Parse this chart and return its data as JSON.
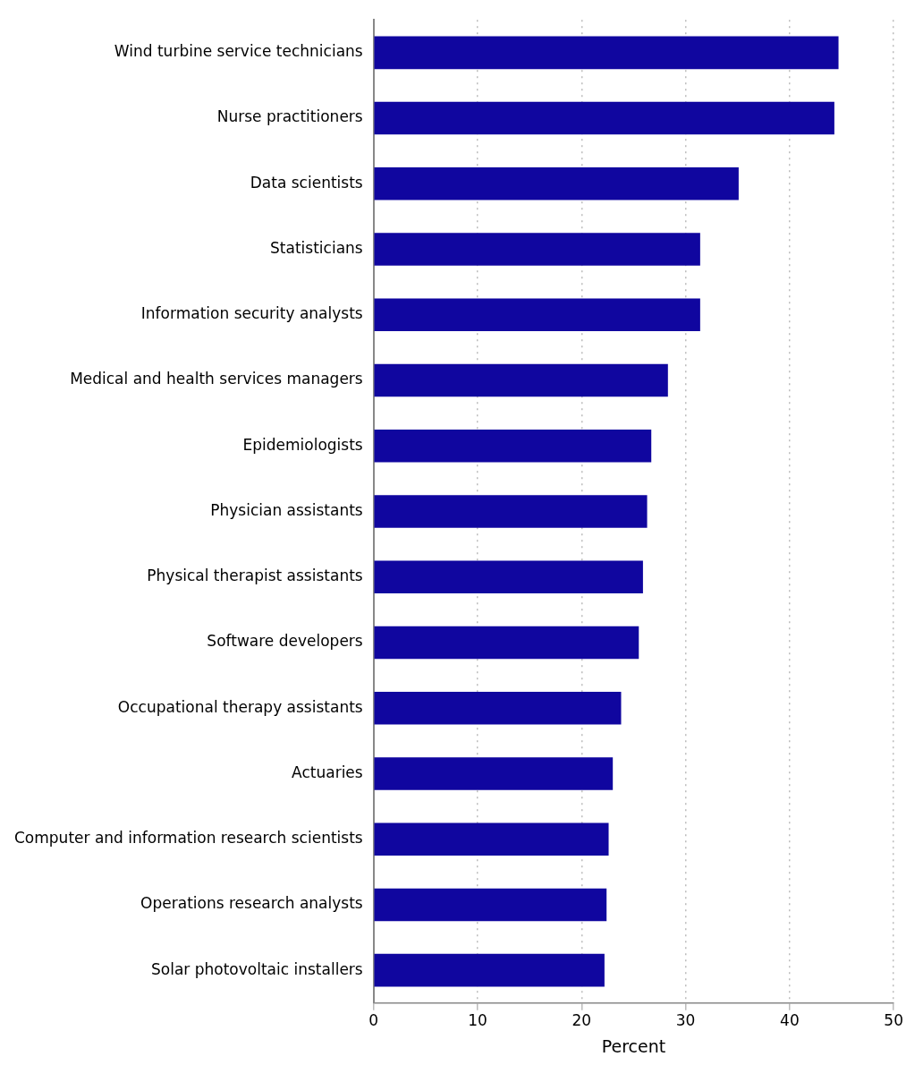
{
  "chart_data": {
    "type": "bar",
    "orientation": "horizontal",
    "xlabel": "Percent",
    "categories": [
      "Wind turbine service technicians",
      "Nurse practitioners",
      "Data scientists",
      "Statisticians",
      "Information security analysts",
      "Medical and health services managers",
      "Epidemiologists",
      "Physician assistants",
      "Physical therapist assistants",
      "Software developers",
      "Occupational therapy assistants",
      "Actuaries",
      "Computer and information research scientists",
      "Operations research analysts",
      "Solar photovoltaic installers"
    ],
    "values": [
      44.7,
      44.3,
      35.1,
      31.4,
      31.4,
      28.3,
      26.7,
      26.3,
      25.9,
      25.5,
      23.8,
      23.0,
      22.6,
      22.4,
      22.2
    ],
    "color": "#10069f",
    "xlim": [
      0,
      50
    ],
    "xticks": [
      0,
      10,
      20,
      30,
      40,
      50
    ],
    "grid": "x",
    "legend": false
  }
}
